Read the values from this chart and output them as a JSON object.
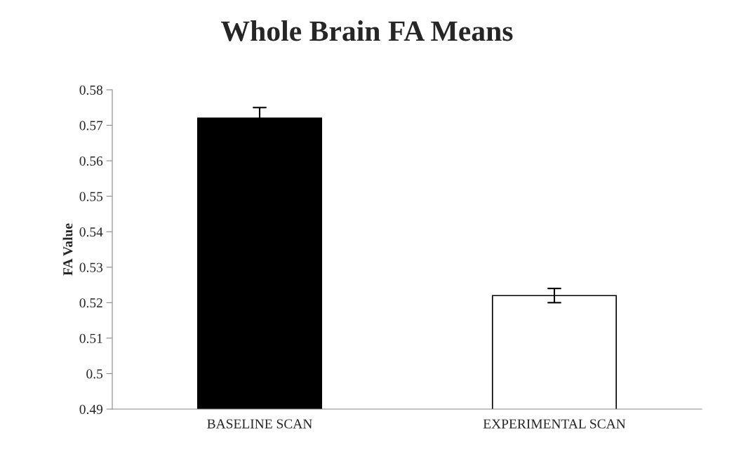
{
  "chart_data": {
    "type": "bar",
    "title": "Whole Brain FA Means",
    "ylabel": "FA Value",
    "categories": [
      "BASELINE SCAN",
      "EXPERIMENTAL SCAN"
    ],
    "values": [
      0.572,
      0.522
    ],
    "colors": [
      "#000000",
      "#ffffff"
    ],
    "errors": [
      0.003,
      0.002
    ],
    "ylim": [
      0.49,
      0.58
    ],
    "yticks": [
      {
        "value": 0.49,
        "label": "0.49"
      },
      {
        "value": 0.5,
        "label": "0.5"
      },
      {
        "value": 0.51,
        "label": "0.51"
      },
      {
        "value": 0.52,
        "label": "0.52"
      },
      {
        "value": 0.53,
        "label": "0.53"
      },
      {
        "value": 0.54,
        "label": "0.54"
      },
      {
        "value": 0.55,
        "label": "0.55"
      },
      {
        "value": 0.56,
        "label": "0.56"
      },
      {
        "value": 0.57,
        "label": "0.57"
      },
      {
        "value": 0.58,
        "label": "0.58"
      }
    ],
    "grid": false,
    "legend": false
  }
}
